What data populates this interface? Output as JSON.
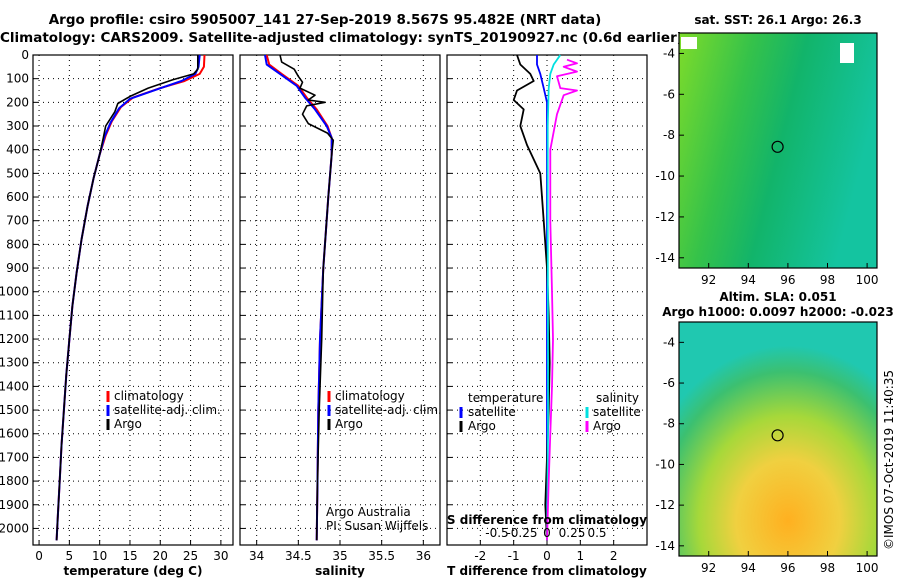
{
  "title_line1": "Argo profile: csiro 5905007_141 27-Sep-2019 8.567S 95.482E (NRT data)",
  "title_line2": "Climatology: CARS2009. Satellite-adjusted climatology: synTS_20190927.nc (0.6d earlier)",
  "colors": {
    "climatology": "#ff0000",
    "satellite": "#0000ff",
    "argo": "#000000",
    "sal_sat": "#00e0e0",
    "sal_argo": "#ff00ff"
  },
  "chart_data": [
    {
      "type": "line",
      "xlabel": "temperature (deg C)",
      "ylabel": "",
      "xlim": [
        -1,
        32
      ],
      "ylim": [
        2070,
        0
      ],
      "xticks": [
        0,
        5,
        10,
        15,
        20,
        25,
        30
      ],
      "yticks": [
        0,
        100,
        200,
        300,
        400,
        500,
        600,
        700,
        800,
        900,
        1000,
        1100,
        1200,
        1300,
        1400,
        1500,
        1600,
        1700,
        1800,
        1900,
        2000
      ],
      "legend": [
        "climatology",
        "satellite-adj. clim.",
        "Argo"
      ],
      "series": [
        {
          "name": "climatology",
          "points": [
            [
              27.3,
              0
            ],
            [
              27.2,
              50
            ],
            [
              26.5,
              80
            ],
            [
              24,
              110
            ],
            [
              20,
              140
            ],
            [
              15.5,
              180
            ],
            [
              13.5,
              220
            ],
            [
              12,
              280
            ],
            [
              11,
              340
            ],
            [
              10,
              420
            ],
            [
              9,
              520
            ],
            [
              8,
              640
            ],
            [
              7,
              780
            ],
            [
              6.2,
              920
            ],
            [
              5.5,
              1060
            ],
            [
              5,
              1200
            ],
            [
              4.5,
              1350
            ],
            [
              4.1,
              1500
            ],
            [
              3.7,
              1650
            ],
            [
              3.4,
              1800
            ],
            [
              3.1,
              1950
            ],
            [
              2.9,
              2050
            ]
          ]
        },
        {
          "name": "satellite-adj. clim.",
          "points": [
            [
              26.5,
              0
            ],
            [
              26.3,
              50
            ],
            [
              25.8,
              80
            ],
            [
              23.5,
              110
            ],
            [
              19.5,
              145
            ],
            [
              15,
              185
            ],
            [
              13.2,
              225
            ],
            [
              11.8,
              285
            ],
            [
              10.8,
              345
            ],
            [
              10,
              420
            ],
            [
              9,
              520
            ],
            [
              8,
              640
            ],
            [
              7,
              780
            ],
            [
              6.2,
              920
            ],
            [
              5.5,
              1060
            ],
            [
              5,
              1200
            ],
            [
              4.5,
              1350
            ],
            [
              4.1,
              1500
            ],
            [
              3.7,
              1650
            ],
            [
              3.4,
              1800
            ],
            [
              3.1,
              1950
            ],
            [
              2.9,
              2050
            ]
          ]
        },
        {
          "name": "Argo",
          "points": [
            [
              26.2,
              0
            ],
            [
              26.2,
              60
            ],
            [
              25.5,
              80
            ],
            [
              22,
              105
            ],
            [
              18,
              140
            ],
            [
              15,
              175
            ],
            [
              13,
              205
            ],
            [
              12.5,
              240
            ],
            [
              11,
              300
            ],
            [
              10.6,
              350
            ],
            [
              10,
              420
            ],
            [
              9,
              520
            ],
            [
              8,
              640
            ],
            [
              7,
              780
            ],
            [
              6.2,
              920
            ],
            [
              5.5,
              1060
            ],
            [
              5,
              1200
            ],
            [
              4.5,
              1350
            ],
            [
              4.1,
              1500
            ],
            [
              3.7,
              1650
            ],
            [
              3.4,
              1800
            ],
            [
              3.1,
              1950
            ],
            [
              2.9,
              2050
            ]
          ]
        }
      ]
    },
    {
      "type": "line",
      "xlabel": "salinity",
      "ylabel": "",
      "xlim": [
        33.8,
        36.2
      ],
      "ylim": [
        2070,
        0
      ],
      "xticks": [
        "34",
        "34.5",
        "35",
        "35.5",
        "36"
      ],
      "xtick_values": [
        34,
        34.5,
        35,
        35.5,
        36
      ],
      "legend": [
        "climatology",
        "satellite-adj. clim.",
        "Argo"
      ],
      "credit": [
        "Argo Australia",
        "PI: Susan Wijffels"
      ],
      "series": [
        {
          "name": "climatology",
          "points": [
            [
              34.12,
              0
            ],
            [
              34.15,
              40
            ],
            [
              34.3,
              80
            ],
            [
              34.5,
              130
            ],
            [
              34.6,
              180
            ],
            [
              34.72,
              230
            ],
            [
              34.85,
              300
            ],
            [
              34.9,
              350
            ],
            [
              34.9,
              420
            ],
            [
              34.86,
              600
            ],
            [
              34.8,
              900
            ],
            [
              34.76,
              1200
            ],
            [
              34.74,
              1500
            ],
            [
              34.73,
              1800
            ],
            [
              34.72,
              2050
            ]
          ]
        },
        {
          "name": "satellite-adj. clim.",
          "points": [
            [
              34.1,
              0
            ],
            [
              34.12,
              40
            ],
            [
              34.28,
              80
            ],
            [
              34.48,
              130
            ],
            [
              34.58,
              180
            ],
            [
              34.7,
              230
            ],
            [
              34.84,
              300
            ],
            [
              34.9,
              350
            ],
            [
              34.9,
              420
            ],
            [
              34.86,
              600
            ],
            [
              34.8,
              900
            ],
            [
              34.76,
              1200
            ],
            [
              34.74,
              1500
            ],
            [
              34.73,
              1800
            ],
            [
              34.72,
              2050
            ]
          ]
        },
        {
          "name": "Argo",
          "points": [
            [
              34.28,
              0
            ],
            [
              34.3,
              30
            ],
            [
              34.45,
              60
            ],
            [
              34.5,
              90
            ],
            [
              34.55,
              115
            ],
            [
              34.52,
              140
            ],
            [
              34.7,
              170
            ],
            [
              34.62,
              190
            ],
            [
              34.82,
              200
            ],
            [
              34.6,
              215
            ],
            [
              34.55,
              250
            ],
            [
              34.62,
              290
            ],
            [
              34.85,
              330
            ],
            [
              34.92,
              360
            ],
            [
              34.9,
              420
            ],
            [
              34.86,
              600
            ],
            [
              34.8,
              900
            ],
            [
              34.78,
              1200
            ],
            [
              34.75,
              1500
            ],
            [
              34.73,
              1800
            ],
            [
              34.72,
              2050
            ]
          ]
        }
      ]
    },
    {
      "type": "line",
      "xlabel": "T difference from climatology",
      "xlabel2": "S difference from climatology",
      "xlim": [
        -3,
        3
      ],
      "ylim": [
        2070,
        0
      ],
      "xticks": [
        "-2",
        "-1",
        "0",
        "1",
        "2"
      ],
      "xtick_values": [
        -2,
        -1,
        0,
        1,
        2
      ],
      "xticks2": [
        "-0.5",
        "-0.25",
        "0",
        "0.25",
        "0.5"
      ],
      "xtick2_values": [
        -1.5,
        -0.75,
        0,
        0.75,
        1.5
      ],
      "legend_left": {
        "title": "temperature",
        "items": [
          "satellite",
          "Argo"
        ]
      },
      "legend_right": {
        "title": "salinity",
        "items": [
          "satellite",
          "Argo"
        ]
      },
      "series": [
        {
          "name": "temperature satellite",
          "points": [
            [
              -0.3,
              0
            ],
            [
              -0.3,
              40
            ],
            [
              -0.2,
              80
            ],
            [
              -0.1,
              140
            ],
            [
              0,
              200
            ],
            [
              0,
              400
            ],
            [
              0,
              800
            ],
            [
              0,
              1200
            ],
            [
              0,
              1600
            ],
            [
              0,
              2050
            ]
          ]
        },
        {
          "name": "temperature Argo",
          "points": [
            [
              -0.9,
              0
            ],
            [
              -0.8,
              40
            ],
            [
              -0.5,
              80
            ],
            [
              -0.4,
              110
            ],
            [
              -0.9,
              150
            ],
            [
              -1.0,
              190
            ],
            [
              -0.7,
              230
            ],
            [
              -0.8,
              300
            ],
            [
              -0.6,
              380
            ],
            [
              -0.2,
              500
            ],
            [
              -0.1,
              700
            ],
            [
              0,
              900
            ],
            [
              0.05,
              1100
            ],
            [
              0.08,
              1300
            ],
            [
              0.05,
              1500
            ],
            [
              0,
              1700
            ],
            [
              -0.05,
              1900
            ],
            [
              0,
              2050
            ]
          ]
        },
        {
          "name": "salinity satellite",
          "points": [
            [
              0.4,
              0
            ],
            [
              0.2,
              40
            ],
            [
              0.1,
              80
            ],
            [
              0.05,
              140
            ],
            [
              0.02,
              300
            ],
            [
              0.02,
              700
            ],
            [
              0.03,
              1200
            ],
            [
              0.03,
              1600
            ],
            [
              0,
              2050
            ]
          ]
        },
        {
          "name": "salinity Argo",
          "points": [
            [
              0.6,
              20
            ],
            [
              0.9,
              35
            ],
            [
              0.5,
              50
            ],
            [
              0.9,
              70
            ],
            [
              0.3,
              90
            ],
            [
              0.4,
              140
            ],
            [
              0.9,
              150
            ],
            [
              0.5,
              170
            ],
            [
              0.3,
              250
            ],
            [
              0.1,
              400
            ],
            [
              0.1,
              700
            ],
            [
              0.15,
              1000
            ],
            [
              0.18,
              1200
            ],
            [
              0.15,
              1400
            ],
            [
              0.1,
              1600
            ],
            [
              0.05,
              1800
            ],
            [
              0,
              2050
            ]
          ]
        }
      ]
    }
  ],
  "maps": [
    {
      "title": "sat. SST: 26.1  Argo: 26.3",
      "xticks": [
        "92",
        "94",
        "96",
        "98",
        "100"
      ],
      "yticks": [
        "-4",
        "-6",
        "-8",
        "-10",
        "-12",
        "-14"
      ],
      "xlim": [
        90.5,
        100.5
      ],
      "ylim": [
        -3,
        -14.5
      ],
      "marker": [
        95.48,
        -8.57
      ]
    },
    {
      "title": "Altim. SLA: 0.051",
      "subtitle": "Argo h1000: 0.0097  h2000: -0.023",
      "xticks": [
        "92",
        "94",
        "96",
        "98",
        "100"
      ],
      "yticks": [
        "-4",
        "-6",
        "-8",
        "-10",
        "-12",
        "-14"
      ],
      "xlim": [
        90.5,
        100.5
      ],
      "ylim": [
        -3,
        -14.5
      ],
      "marker": [
        95.48,
        -8.57
      ]
    }
  ],
  "footer_stamp": "©IMOS 07-Oct-2019 11:40:35"
}
